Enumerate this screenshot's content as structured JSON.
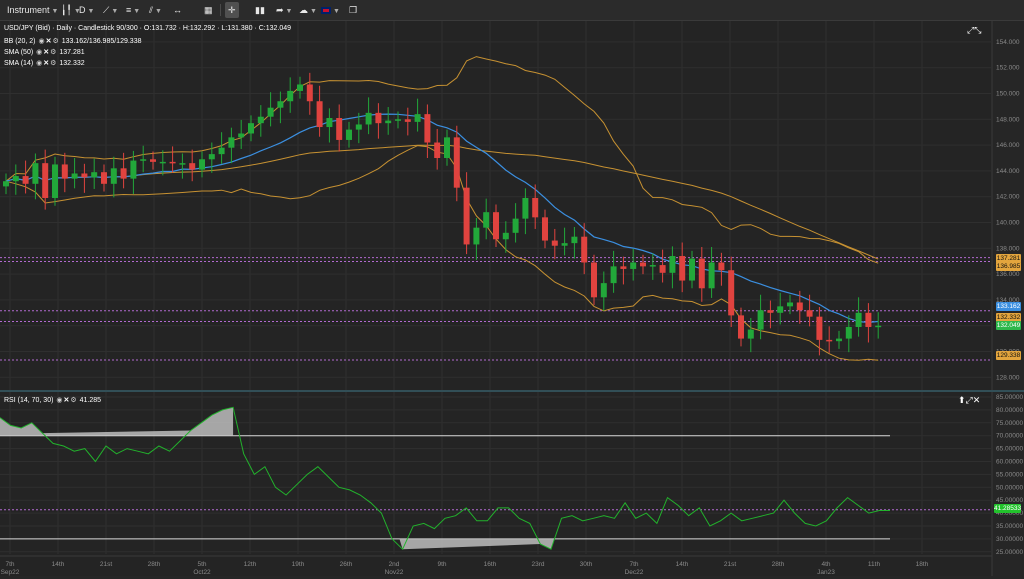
{
  "toolbar": {
    "instrument_label": "Instrument",
    "timeframe_label": "D"
  },
  "main": {
    "title_line": "USD/JPY (Bid) · Daily · Candlestick",
    "ohlc_line": "90/300 · O:131.732 · H:132.292 · L:131.380 · C:132.049",
    "indicators": [
      {
        "label": "BB (20, 2)",
        "value": "133.162/136.985/129.338"
      },
      {
        "label": "SMA (50)",
        "value": "137.281"
      },
      {
        "label": "SMA (14)",
        "value": "132.332"
      }
    ],
    "price_ticks": [
      "154.000",
      "152.000",
      "150.000",
      "148.000",
      "146.000",
      "144.000",
      "142.000",
      "140.000",
      "138.000",
      "136.000",
      "134.000",
      "132.000",
      "130.000",
      "128.000"
    ],
    "price_tags": [
      {
        "text": "137.281",
        "color": "#e3a53d"
      },
      {
        "text": "136.985",
        "color": "#e3a53d"
      },
      {
        "text": "133.162",
        "color": "#3b8fe0"
      },
      {
        "text": "132.332",
        "color": "#e3a53d"
      },
      {
        "text": "132.049",
        "color": "#2eb84c"
      },
      {
        "text": "129.338",
        "color": "#e3a53d"
      }
    ]
  },
  "rsi": {
    "label": "RSI (14, 70, 30)",
    "value": "41.285",
    "ticks": [
      "85.00000",
      "80.00000",
      "75.00000",
      "70.00000",
      "65.00000",
      "60.00000",
      "55.00000",
      "50.00000",
      "45.00000",
      "40.00000",
      "35.00000",
      "30.00000",
      "25.00000"
    ],
    "tag": {
      "text": "41.28533",
      "color": "#22c22c"
    }
  },
  "date_axis": [
    {
      "top": "7th",
      "bottom": "Sep22"
    },
    {
      "top": "14th",
      "bottom": ""
    },
    {
      "top": "21st",
      "bottom": ""
    },
    {
      "top": "28th",
      "bottom": ""
    },
    {
      "top": "5th",
      "bottom": "Oct22"
    },
    {
      "top": "12th",
      "bottom": ""
    },
    {
      "top": "19th",
      "bottom": ""
    },
    {
      "top": "26th",
      "bottom": ""
    },
    {
      "top": "2nd",
      "bottom": "Nov22"
    },
    {
      "top": "9th",
      "bottom": ""
    },
    {
      "top": "16th",
      "bottom": ""
    },
    {
      "top": "23rd",
      "bottom": ""
    },
    {
      "top": "30th",
      "bottom": ""
    },
    {
      "top": "7th",
      "bottom": "Dec22"
    },
    {
      "top": "14th",
      "bottom": ""
    },
    {
      "top": "21st",
      "bottom": ""
    },
    {
      "top": "28th",
      "bottom": ""
    },
    {
      "top": "4th",
      "bottom": "Jan23"
    },
    {
      "top": "11th",
      "bottom": ""
    },
    {
      "top": "18th",
      "bottom": ""
    }
  ],
  "chart_data": [
    {
      "type": "candlestick",
      "title": "USD/JPY (Bid) - Daily - Candlestick",
      "ylim": [
        127,
        155
      ],
      "series": [
        {
          "name": "USD/JPY",
          "close": [
            143.2,
            143.6,
            143.0,
            144.6,
            141.9,
            144.5,
            143.4,
            143.8,
            143.5,
            143.9,
            143.0,
            144.2,
            143.4,
            144.8,
            144.9,
            144.7,
            144.7,
            144.6,
            144.6,
            144.1,
            144.9,
            145.3,
            145.8,
            146.6,
            146.9,
            147.7,
            148.2,
            148.9,
            149.4,
            150.2,
            150.7,
            149.4,
            147.4,
            148.1,
            146.4,
            147.2,
            147.6,
            148.5,
            147.7,
            147.9,
            148.0,
            147.8,
            148.4,
            146.2,
            145.0,
            146.6,
            142.7,
            138.3,
            139.6,
            140.8,
            138.7,
            139.2,
            140.3,
            141.9,
            140.4,
            138.6,
            138.2,
            138.4,
            138.9,
            136.9,
            134.2,
            135.3,
            136.6,
            136.4,
            136.9,
            136.6,
            136.7,
            136.1,
            137.4,
            135.5,
            137.2,
            134.9,
            136.9,
            136.3,
            132.8,
            131.0,
            131.7,
            133.2,
            133.0,
            133.5,
            133.8,
            133.2,
            132.7,
            130.9,
            130.8,
            131.0,
            131.9,
            133.0,
            131.9,
            132.0
          ],
          "ema_colors": {
            "up": "#22a83a",
            "down": "#e0433f"
          }
        },
        {
          "name": "BB (20, 2)",
          "values": "133.162/136.985/129.338"
        },
        {
          "name": "SMA (50)",
          "values": "137.281"
        },
        {
          "name": "SMA (14)",
          "values": "132.332"
        }
      ]
    },
    {
      "type": "line",
      "title": "RSI (14, 70, 30)",
      "ylim": [
        25,
        85
      ],
      "levels": [
        70,
        30
      ],
      "series": [
        {
          "name": "RSI",
          "values": [
            77,
            74,
            73,
            75,
            71,
            67,
            66,
            64,
            65,
            60,
            66,
            63,
            65,
            64,
            63,
            66,
            64,
            68,
            72,
            75,
            78,
            80,
            81,
            63,
            55,
            58,
            50,
            47,
            51,
            55,
            58,
            54,
            50,
            49,
            47,
            44,
            40,
            30,
            26,
            35,
            36,
            34,
            38,
            39,
            42,
            37,
            37,
            42,
            42,
            38,
            36,
            28,
            26,
            38,
            39,
            37,
            38,
            39,
            38,
            44,
            38,
            40,
            36,
            46,
            43,
            39,
            42,
            35,
            37,
            40,
            37,
            38,
            39,
            40,
            45,
            40,
            36,
            35,
            37,
            42,
            46,
            43,
            40,
            41,
            41
          ]
        }
      ]
    }
  ]
}
